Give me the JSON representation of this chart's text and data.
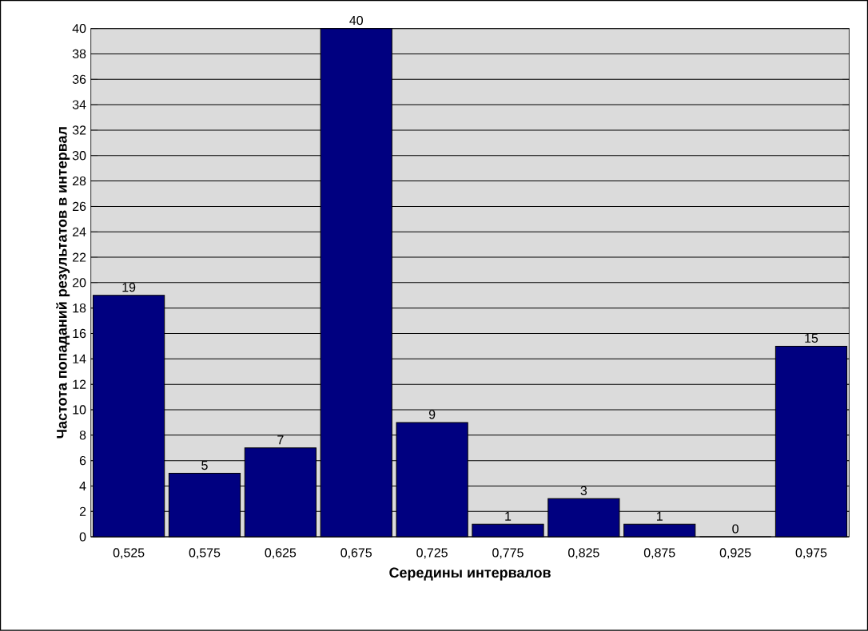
{
  "chart_data": {
    "type": "bar",
    "xlabel": "Середины интервалов",
    "ylabel": "Частота попаданий результатов в интервал",
    "categories": [
      "0,525",
      "0,575",
      "0,625",
      "0,675",
      "0,725",
      "0,775",
      "0,825",
      "0,875",
      "0,925",
      "0,975"
    ],
    "values": [
      19,
      5,
      7,
      40,
      9,
      1,
      3,
      1,
      0,
      15
    ],
    "color": "#000080",
    "data_labels": true,
    "ylim": [
      0,
      40
    ],
    "yticks": [
      0,
      2,
      4,
      6,
      8,
      10,
      12,
      14,
      16,
      18,
      20,
      22,
      24,
      26,
      28,
      30,
      32,
      34,
      36,
      38,
      40
    ],
    "grid": "y"
  }
}
